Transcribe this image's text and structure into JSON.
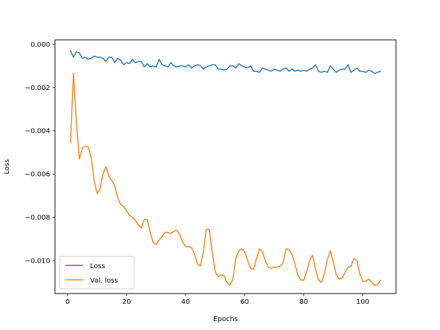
{
  "chart_data": {
    "type": "line",
    "title": "",
    "xlabel": "Epochs",
    "ylabel": "Loss",
    "xlim": [
      -4.25,
      111.25
    ],
    "ylim": [
      -0.01152,
      0.0002
    ],
    "xticks": [
      0,
      20,
      40,
      60,
      80,
      100
    ],
    "xtick_labels": [
      "0",
      "20",
      "40",
      "60",
      "80",
      "100"
    ],
    "yticks": [
      0.0,
      -0.002,
      -0.004,
      -0.006,
      -0.008,
      -0.01
    ],
    "ytick_labels": [
      "0.000",
      "−0.002",
      "−0.004",
      "−0.006",
      "−0.008",
      "−0.010"
    ],
    "grid": false,
    "legend_position": "lower-left",
    "series": [
      {
        "name": "Loss",
        "color": "#1f77b4",
        "x": [
          1,
          2,
          3,
          4,
          5,
          6,
          7,
          8,
          9,
          10,
          11,
          12,
          13,
          14,
          15,
          16,
          17,
          18,
          19,
          20,
          21,
          22,
          23,
          24,
          25,
          26,
          27,
          28,
          29,
          30,
          31,
          32,
          33,
          34,
          35,
          36,
          37,
          38,
          39,
          40,
          41,
          42,
          43,
          44,
          45,
          46,
          47,
          48,
          49,
          50,
          51,
          52,
          53,
          54,
          55,
          56,
          57,
          58,
          59,
          60,
          61,
          62,
          63,
          64,
          65,
          66,
          67,
          68,
          69,
          70,
          71,
          72,
          73,
          74,
          75,
          76,
          77,
          78,
          79,
          80,
          81,
          82,
          83,
          84,
          85,
          86,
          87,
          88,
          89,
          90,
          91,
          92,
          93,
          94,
          95,
          96,
          97,
          98,
          99,
          100,
          101,
          102,
          103,
          104,
          105,
          106
        ],
        "values": [
          -0.0003,
          -0.0006,
          -0.00035,
          -0.0004,
          -0.00065,
          -0.0006,
          -0.0007,
          -0.00065,
          -0.00055,
          -0.0006,
          -0.0006,
          -0.00065,
          -0.0008,
          -0.0006,
          -0.0006,
          -0.00085,
          -0.00065,
          -0.00075,
          -0.00095,
          -0.00085,
          -0.0009,
          -0.0007,
          -0.00085,
          -0.0008,
          -0.0008,
          -0.00105,
          -0.0009,
          -0.00105,
          -0.001,
          -0.00105,
          -0.0007,
          -0.00095,
          -0.001,
          -0.00105,
          -0.00085,
          -0.001,
          -0.00105,
          -0.001,
          -0.001,
          -0.00105,
          -0.00095,
          -0.0011,
          -0.001,
          -0.00095,
          -0.001,
          -0.00115,
          -0.00105,
          -0.001,
          -0.00095,
          -0.00095,
          -0.00115,
          -0.00115,
          -0.0012,
          -0.00115,
          -0.001,
          -0.001,
          -0.0011,
          -0.0009,
          -0.001,
          -0.00105,
          -0.0011,
          -0.001,
          -0.00125,
          -0.00125,
          -0.0013,
          -0.0011,
          -0.00115,
          -0.0012,
          -0.00125,
          -0.00115,
          -0.0012,
          -0.00125,
          -0.00115,
          -0.0011,
          -0.00125,
          -0.00115,
          -0.00125,
          -0.0012,
          -0.00125,
          -0.0012,
          -0.00125,
          -0.00115,
          -0.0011,
          -0.00095,
          -0.00125,
          -0.0013,
          -0.00125,
          -0.0013,
          -0.001,
          -0.00115,
          -0.0013,
          -0.0012,
          -0.00115,
          -0.00115,
          -0.00095,
          -0.0013,
          -0.0012,
          -0.0011,
          -0.00125,
          -0.00125,
          -0.0013,
          -0.0012,
          -0.00125,
          -0.00135,
          -0.0013,
          -0.00125
        ]
      },
      {
        "name": "Val. loss",
        "color": "#ff7f0e",
        "x": [
          1,
          2,
          3,
          4,
          5,
          6,
          7,
          8,
          9,
          10,
          11,
          12,
          13,
          14,
          15,
          16,
          17,
          18,
          19,
          20,
          21,
          22,
          23,
          24,
          25,
          26,
          27,
          28,
          29,
          30,
          31,
          32,
          33,
          34,
          35,
          36,
          37,
          38,
          39,
          40,
          41,
          42,
          43,
          44,
          45,
          46,
          47,
          48,
          49,
          50,
          51,
          52,
          53,
          54,
          55,
          56,
          57,
          58,
          59,
          60,
          61,
          62,
          63,
          64,
          65,
          66,
          67,
          68,
          69,
          70,
          71,
          72,
          73,
          74,
          75,
          76,
          77,
          78,
          79,
          80,
          81,
          82,
          83,
          84,
          85,
          86,
          87,
          88,
          89,
          90,
          91,
          92,
          93,
          94,
          95,
          96,
          97,
          98,
          99,
          100,
          101,
          102,
          103,
          104,
          105,
          106
        ],
        "values": [
          -0.00455,
          -0.00135,
          -0.0036,
          -0.0053,
          -0.0048,
          -0.0047,
          -0.00475,
          -0.00525,
          -0.0063,
          -0.0069,
          -0.0067,
          -0.006,
          -0.00565,
          -0.0061,
          -0.0063,
          -0.00655,
          -0.0071,
          -0.0074,
          -0.0075,
          -0.0077,
          -0.0079,
          -0.008,
          -0.00815,
          -0.00835,
          -0.0085,
          -0.0081,
          -0.0081,
          -0.0087,
          -0.00915,
          -0.00925,
          -0.00905,
          -0.0089,
          -0.0087,
          -0.0087,
          -0.00875,
          -0.00865,
          -0.0086,
          -0.0088,
          -0.00915,
          -0.00935,
          -0.00935,
          -0.0094,
          -0.0097,
          -0.01015,
          -0.01025,
          -0.0096,
          -0.00855,
          -0.00855,
          -0.0096,
          -0.0105,
          -0.01075,
          -0.01065,
          -0.0107,
          -0.011,
          -0.01115,
          -0.01085,
          -0.0099,
          -0.00955,
          -0.00945,
          -0.0096,
          -0.01,
          -0.01035,
          -0.0104,
          -0.0099,
          -0.00945,
          -0.0096,
          -0.01,
          -0.0103,
          -0.01035,
          -0.0103,
          -0.0103,
          -0.01025,
          -0.0101,
          -0.00945,
          -0.0095,
          -0.0097,
          -0.01015,
          -0.01065,
          -0.0109,
          -0.0109,
          -0.0105,
          -0.01,
          -0.00975,
          -0.0104,
          -0.0109,
          -0.011,
          -0.0106,
          -0.00995,
          -0.00955,
          -0.01005,
          -0.01065,
          -0.01085,
          -0.0108,
          -0.01055,
          -0.0103,
          -0.01025,
          -0.0099,
          -0.01,
          -0.0106,
          -0.01095,
          -0.01095,
          -0.01085,
          -0.011,
          -0.01115,
          -0.0111,
          -0.0109
        ]
      }
    ]
  }
}
